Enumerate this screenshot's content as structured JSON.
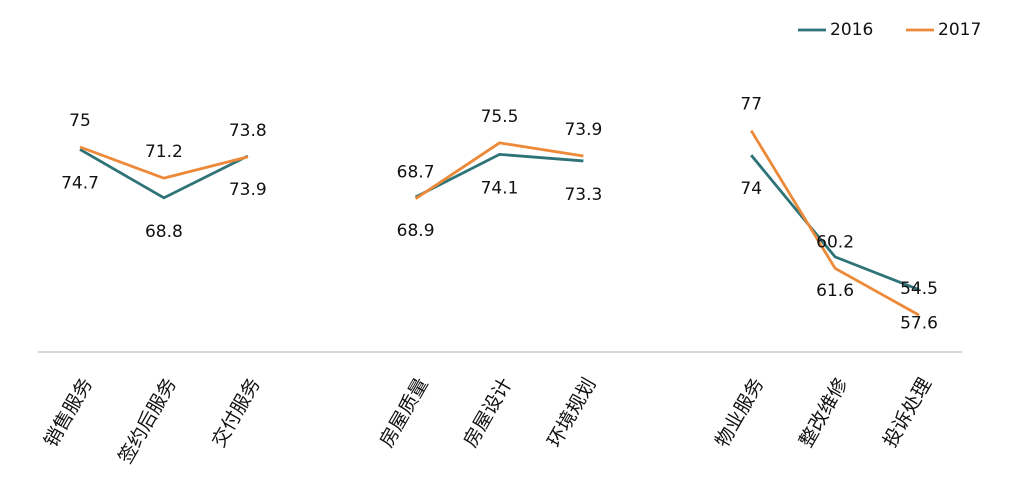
{
  "chart_data": {
    "type": "line",
    "categories": [
      "销售服务",
      "签约后服务",
      "交付服务",
      null,
      "房屋质量",
      "房屋设计",
      "环境规划",
      null,
      "物业服务",
      "整改维修",
      "投诉处理"
    ],
    "series": [
      {
        "name": "2016",
        "color": "#2e7378",
        "values": [
          74.7,
          68.8,
          73.9,
          null,
          68.9,
          74.1,
          73.3,
          null,
          74.0,
          61.6,
          57.6
        ]
      },
      {
        "name": "2017",
        "color": "#ed8a3a",
        "values": [
          75.0,
          71.2,
          73.8,
          null,
          68.7,
          75.5,
          73.9,
          null,
          77.0,
          60.2,
          54.5
        ]
      }
    ],
    "ylim": [
      50,
      80
    ],
    "legend": "top-right",
    "grid": false
  }
}
